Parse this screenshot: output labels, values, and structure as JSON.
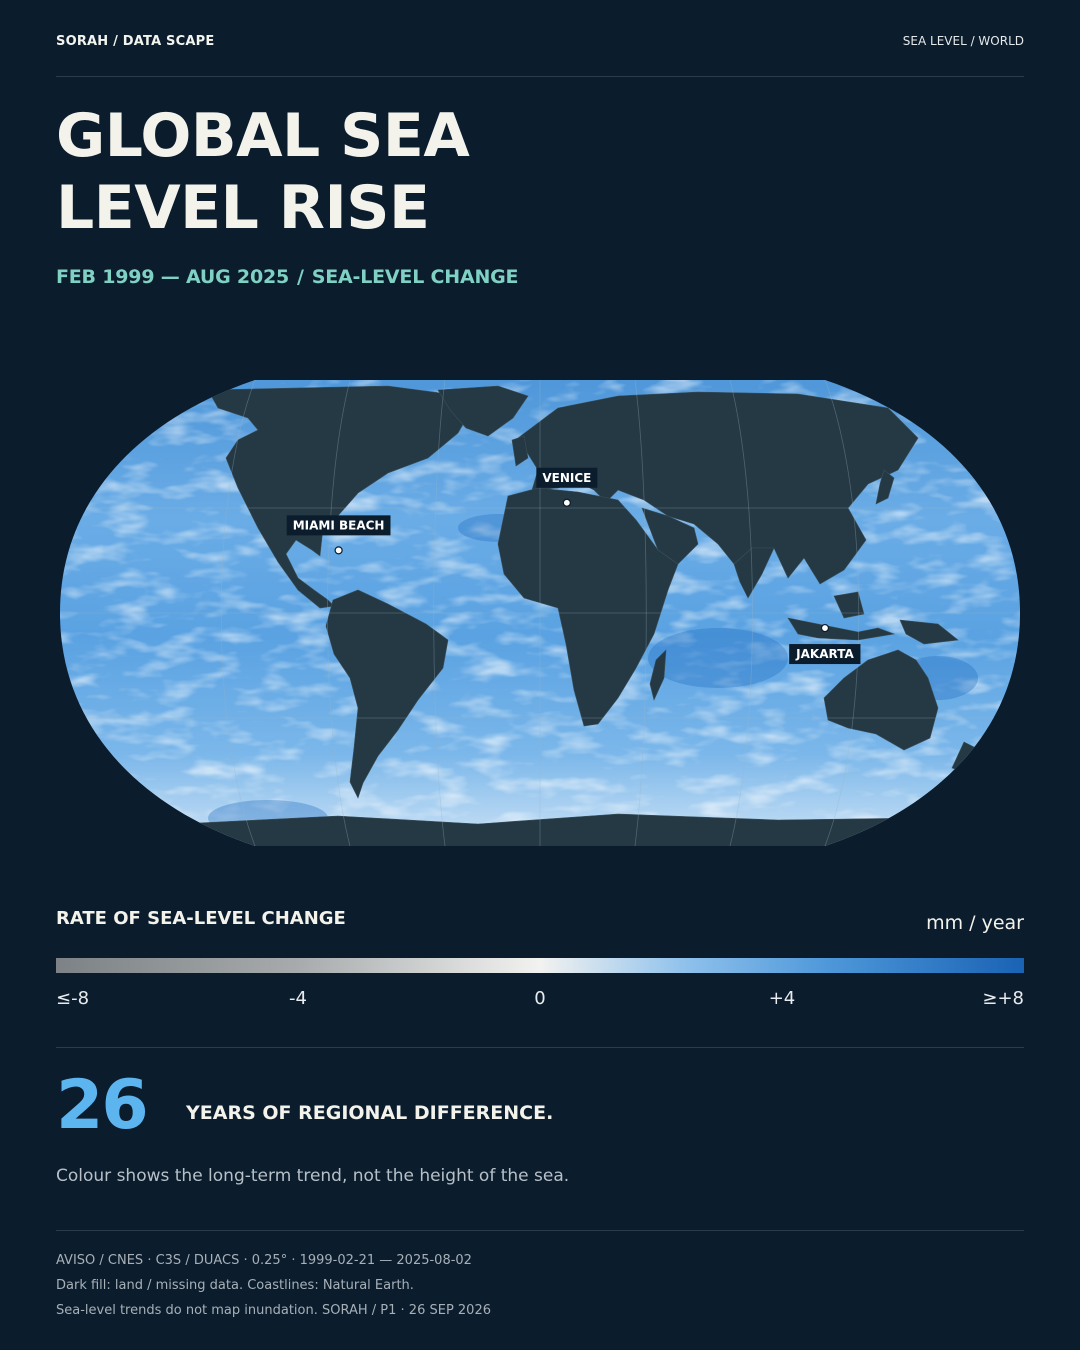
{
  "header": {
    "brand": "SORAH / DATA SCAPE",
    "section": "SEA LEVEL / WORLD"
  },
  "title": {
    "line1": "GLOBAL SEA",
    "line2": "LEVEL RISE"
  },
  "subtitle": {
    "period": "FEB 1999 — AUG 2025",
    "separator": "/",
    "measure": "SEA-LEVEL CHANGE"
  },
  "map": {
    "locations": [
      {
        "name": "MIAMI BEACH",
        "lat": 25.8,
        "lon": -80.1
      },
      {
        "name": "VENICE",
        "lat": 45.4,
        "lon": 12.3
      },
      {
        "name": "JAKARTA",
        "lat": -6.2,
        "lon": 106.8
      }
    ],
    "colors": {
      "land": "#243944",
      "ocean_low": "#d6e9f8",
      "ocean_high": "#1a62b4"
    }
  },
  "legend": {
    "title": "RATE OF SEA-LEVEL CHANGE",
    "unit": "mm / year",
    "ticks": [
      "≤-8",
      "-4",
      "0",
      "+4",
      "≥+8"
    ]
  },
  "stat": {
    "number": "26",
    "text": "YEARS OF REGIONAL DIFFERENCE."
  },
  "note": "Colour shows the long-term trend, not the height of the sea.",
  "footer": {
    "line1": "AVISO / CNES · C3S / DUACS · 0.25° · 1999-02-21 — 2025-08-02",
    "line2": "Dark fill: land / missing data. Coastlines: Natural Earth.",
    "line3": "Sea-level trends do not map inundation. SORAH / P1 · 26 SEP 2026"
  }
}
